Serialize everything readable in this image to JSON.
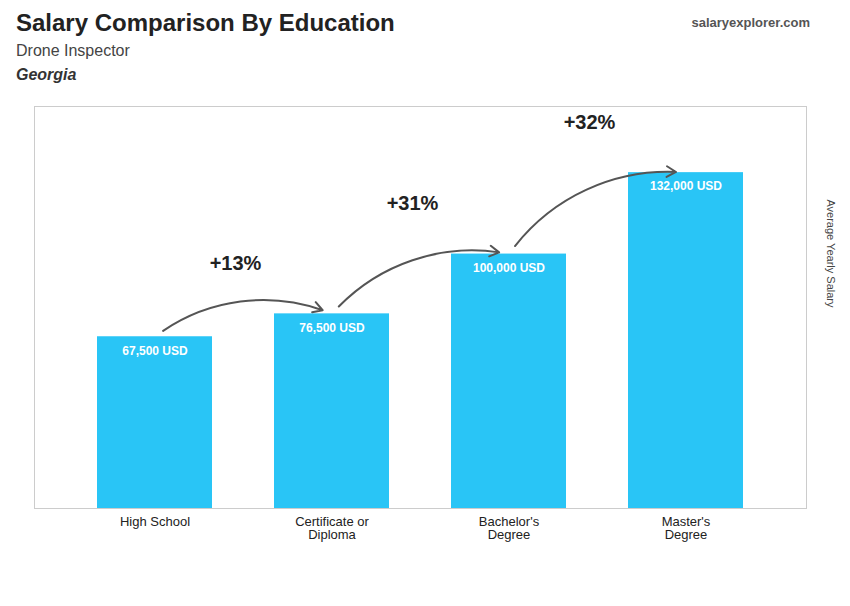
{
  "chart_data": {
    "type": "bar",
    "title": "Salary Comparison By Education",
    "subtitle": "Drone Inspector",
    "ylabel": "Average Yearly Salary",
    "categories": [
      "High School",
      "Certificate or\nDiploma",
      "Bachelor's\nDegree",
      "Master's\nDegree"
    ],
    "values": [
      67500,
      76500,
      100000,
      132000
    ],
    "value_labels": [
      "67,500 USD",
      "76,500 USD",
      "100,000 USD",
      "132,000 USD"
    ],
    "data_labels": true,
    "color": "#29c5f6",
    "ylim": [
      0,
      158000
    ],
    "yticks": [],
    "tick_labels": "x",
    "annotations": [
      {
        "text": "Georgia"
      },
      {
        "text": "salaryexplorer.com"
      },
      {
        "text": "+13%",
        "from": "High School",
        "to": "Certificate or\nDiploma"
      },
      {
        "text": "+31%",
        "from": "Certificate or\nDiploma",
        "to": "Bachelor's\nDegree"
      },
      {
        "text": "+32%",
        "from": "Bachelor's\nDegree",
        "to": "Master's\nDegree"
      }
    ]
  }
}
